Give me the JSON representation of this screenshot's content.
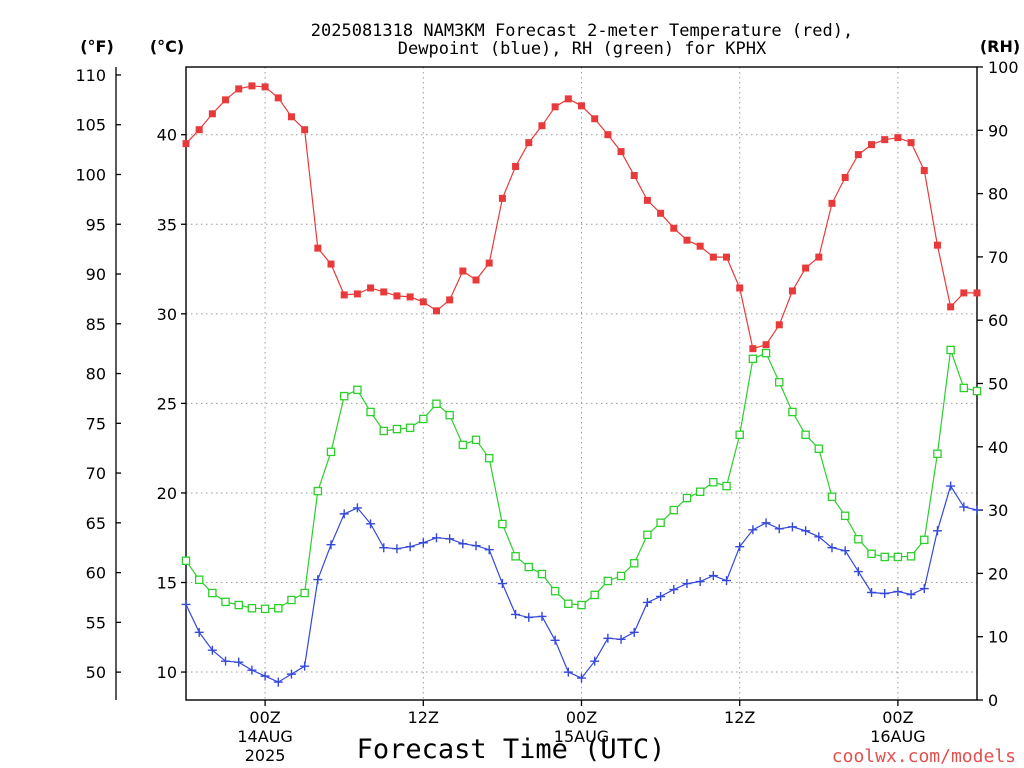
{
  "chart_data": {
    "type": "line",
    "title": [
      "2025081318 NAM3KM Forecast 2-meter Temperature (red),",
      "Dewpoint (blue), RH (green) for KPHX"
    ],
    "xlabel": "Forecast Time (UTC)",
    "xlim": [
      "2025-08-13T18Z",
      "2025-08-16T06Z"
    ],
    "x_ticks": [
      {
        "at": "2025-08-14T00Z",
        "lines": [
          "00Z",
          "14AUG",
          "2025"
        ]
      },
      {
        "at": "2025-08-14T12Z",
        "lines": [
          "12Z"
        ]
      },
      {
        "at": "2025-08-15T00Z",
        "lines": [
          "00Z",
          "15AUG"
        ]
      },
      {
        "at": "2025-08-15T12Z",
        "lines": [
          "12Z"
        ]
      },
      {
        "at": "2025-08-16T00Z",
        "lines": [
          "00Z",
          "16AUG"
        ]
      }
    ],
    "grid": true,
    "y_axes": [
      {
        "label": "(°F)",
        "side": "left",
        "ylim": [
          47.2,
          110.8
        ],
        "grid": false,
        "ticks": [
          "50",
          "55",
          "60",
          "65",
          "70",
          "75",
          "80",
          "85",
          "90",
          "95",
          "100",
          "105",
          "110"
        ]
      },
      {
        "label": "(°C)",
        "side": "left",
        "ylim": [
          8.44,
          43.78
        ],
        "grid": true,
        "ticks": [
          "10",
          "15",
          "20",
          "25",
          "30",
          "35",
          "40"
        ]
      },
      {
        "label": "(RH)",
        "side": "right",
        "ylim": [
          0,
          100
        ],
        "grid": false,
        "ticks": [
          "0",
          "10",
          "20",
          "30",
          "40",
          "50",
          "60",
          "70",
          "80",
          "90",
          "100"
        ]
      }
    ],
    "x": [
      "2025-08-13T18Z",
      "2025-08-13T19Z",
      "2025-08-13T20Z",
      "2025-08-13T21Z",
      "2025-08-13T22Z",
      "2025-08-13T23Z",
      "2025-08-14T00Z",
      "2025-08-14T01Z",
      "2025-08-14T02Z",
      "2025-08-14T03Z",
      "2025-08-14T04Z",
      "2025-08-14T05Z",
      "2025-08-14T06Z",
      "2025-08-14T07Z",
      "2025-08-14T08Z",
      "2025-08-14T09Z",
      "2025-08-14T10Z",
      "2025-08-14T11Z",
      "2025-08-14T12Z",
      "2025-08-14T13Z",
      "2025-08-14T14Z",
      "2025-08-14T15Z",
      "2025-08-14T16Z",
      "2025-08-14T17Z",
      "2025-08-14T18Z",
      "2025-08-14T19Z",
      "2025-08-14T20Z",
      "2025-08-14T21Z",
      "2025-08-14T22Z",
      "2025-08-14T23Z",
      "2025-08-15T00Z",
      "2025-08-15T01Z",
      "2025-08-15T02Z",
      "2025-08-15T03Z",
      "2025-08-15T04Z",
      "2025-08-15T05Z",
      "2025-08-15T06Z",
      "2025-08-15T07Z",
      "2025-08-15T08Z",
      "2025-08-15T09Z",
      "2025-08-15T10Z",
      "2025-08-15T11Z",
      "2025-08-15T12Z",
      "2025-08-15T13Z",
      "2025-08-15T14Z",
      "2025-08-15T15Z",
      "2025-08-15T16Z",
      "2025-08-15T17Z",
      "2025-08-15T18Z",
      "2025-08-15T19Z",
      "2025-08-15T20Z",
      "2025-08-15T21Z",
      "2025-08-15T22Z",
      "2025-08-15T23Z",
      "2025-08-16T00Z",
      "2025-08-16T01Z",
      "2025-08-16T02Z",
      "2025-08-16T03Z",
      "2025-08-16T04Z",
      "2025-08-16T05Z",
      "2025-08-16T06Z"
    ],
    "series": [
      {
        "color": "#e83a3a",
        "marker": "filled-square",
        "axis": 0,
        "values": [
          103.1,
          104.5,
          106.1,
          107.5,
          108.6,
          108.9,
          108.8,
          107.7,
          105.8,
          104.5,
          92.6,
          91.0,
          87.9,
          88.0,
          88.6,
          88.2,
          87.8,
          87.7,
          87.2,
          86.3,
          87.4,
          90.3,
          89.4,
          91.1,
          97.6,
          100.8,
          103.2,
          104.9,
          106.8,
          107.6,
          106.9,
          105.6,
          104.0,
          102.3,
          99.9,
          97.4,
          96.1,
          94.6,
          93.4,
          92.8,
          91.7,
          91.7,
          88.6,
          82.5,
          82.9,
          84.9,
          88.3,
          90.6,
          91.7,
          97.1,
          99.7,
          102.0,
          103.0,
          103.5,
          103.7,
          103.2,
          100.4,
          92.9,
          86.7,
          88.1,
          88.1
        ]
      },
      {
        "color": "#3448dc",
        "marker": "plus",
        "axis": 0,
        "values": [
          56.8,
          54.0,
          52.2,
          51.1,
          51.0,
          50.2,
          49.6,
          49.0,
          49.8,
          50.6,
          59.3,
          62.8,
          65.9,
          66.5,
          64.9,
          62.5,
          62.4,
          62.6,
          63.0,
          63.5,
          63.4,
          62.9,
          62.7,
          62.3,
          58.9,
          55.8,
          55.5,
          55.6,
          53.2,
          50.0,
          49.4,
          51.1,
          53.4,
          53.3,
          54.0,
          57.0,
          57.6,
          58.3,
          58.9,
          59.1,
          59.7,
          59.2,
          62.6,
          64.3,
          65.0,
          64.4,
          64.6,
          64.2,
          63.6,
          62.5,
          62.2,
          60.1,
          58.0,
          57.9,
          58.1,
          57.8,
          58.4,
          64.2,
          68.7,
          66.6,
          66.3
        ]
      },
      {
        "color": "#2ccf2c",
        "marker": "open-square",
        "axis": 2,
        "values": [
          22.0,
          19.0,
          16.9,
          15.5,
          15.0,
          14.5,
          14.4,
          14.5,
          15.8,
          16.9,
          33.0,
          39.2,
          48.0,
          49.0,
          45.5,
          42.5,
          42.8,
          43.0,
          44.4,
          46.8,
          45.0,
          40.3,
          41.1,
          38.2,
          27.8,
          22.7,
          21.0,
          19.9,
          17.2,
          15.2,
          15.0,
          16.6,
          18.8,
          19.6,
          21.6,
          26.1,
          28.0,
          30.0,
          31.9,
          32.9,
          34.4,
          33.8,
          41.9,
          53.9,
          54.8,
          50.2,
          45.5,
          41.9,
          39.7,
          32.1,
          29.1,
          25.4,
          23.1,
          22.6,
          22.6,
          22.7,
          25.3,
          38.9,
          55.3,
          49.3,
          48.8
        ]
      }
    ]
  },
  "credit": {
    "text": "coolwx.com/models",
    "color": "#e2504e"
  }
}
